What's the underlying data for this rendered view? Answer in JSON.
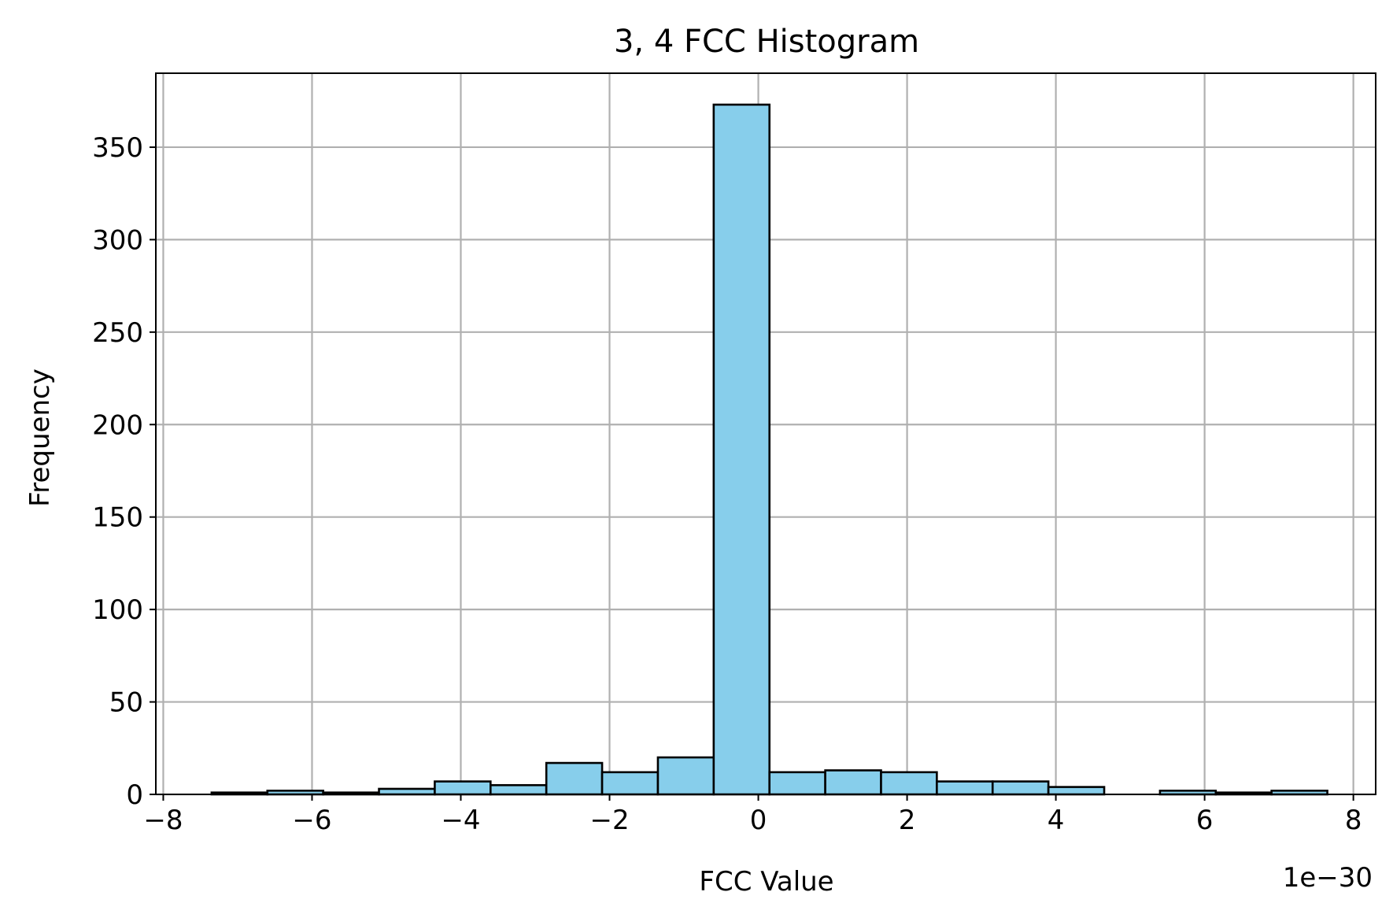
{
  "chart_data": {
    "type": "bar",
    "title": "3, 4 FCC Histogram",
    "xlabel": "FCC Value",
    "ylabel": "Frequency",
    "x_offset_text": "1e−30",
    "xlim": [
      -8.1,
      8.3
    ],
    "ylim": [
      0,
      390
    ],
    "grid": true,
    "x_ticks": [
      -8,
      -6,
      -4,
      -2,
      0,
      2,
      4,
      6,
      8
    ],
    "x_tick_labels": [
      "−8",
      "−6",
      "−4",
      "−2",
      "0",
      "2",
      "4",
      "6",
      "8"
    ],
    "y_ticks": [
      0,
      50,
      100,
      150,
      200,
      250,
      300,
      350
    ],
    "y_tick_labels": [
      "0",
      "50",
      "100",
      "150",
      "200",
      "250",
      "300",
      "350"
    ],
    "bin_edges": [
      -7.35,
      -6.6,
      -5.85,
      -5.1,
      -4.35,
      -3.6,
      -2.85,
      -2.1,
      -1.35,
      -0.6,
      0.15,
      0.9,
      1.65,
      2.4,
      3.15,
      3.9,
      4.65,
      5.4,
      6.15,
      6.9,
      7.65
    ],
    "values": [
      1,
      2,
      1,
      3,
      7,
      5,
      17,
      12,
      20,
      373,
      12,
      13,
      12,
      7,
      7,
      4,
      0,
      2,
      1,
      2
    ],
    "bar_color": "#87ceeb",
    "edge_color": "#000000",
    "grid_color": "#b0b0b0"
  }
}
